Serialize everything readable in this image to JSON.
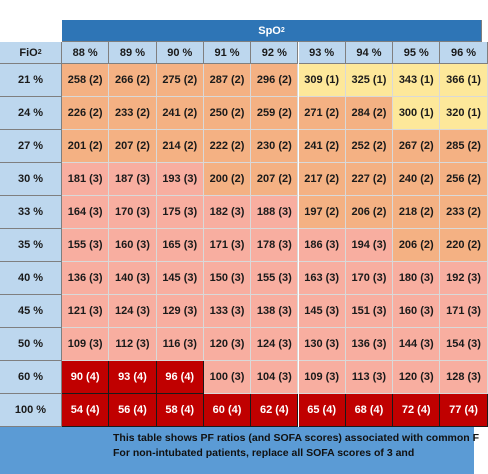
{
  "header": {
    "spo2": {
      "text": "SpO",
      "sub": "2"
    },
    "fio2": {
      "text": "FiO",
      "sub": "2"
    }
  },
  "table": {
    "columns": [
      "88 %",
      "89 %",
      "90 %",
      "91 %",
      "92 %",
      "93 %",
      "94 %",
      "95 %",
      "96 %"
    ],
    "rows": [
      {
        "fio2": "21 %",
        "cells": [
          "258 (2)",
          "266 (2)",
          "275 (2)",
          "287 (2)",
          "296 (2)",
          "309 (1)",
          "325 (1)",
          "343 (1)",
          "366 (1)"
        ]
      },
      {
        "fio2": "24 %",
        "cells": [
          "226 (2)",
          "233 (2)",
          "241 (2)",
          "250 (2)",
          "259 (2)",
          "271 (2)",
          "284 (2)",
          "300 (1)",
          "320 (1)"
        ]
      },
      {
        "fio2": "27 %",
        "cells": [
          "201 (2)",
          "207 (2)",
          "214 (2)",
          "222 (2)",
          "230 (2)",
          "241 (2)",
          "252 (2)",
          "267 (2)",
          "285 (2)"
        ]
      },
      {
        "fio2": "30 %",
        "cells": [
          "181 (3)",
          "187 (3)",
          "193 (3)",
          "200 (2)",
          "207 (2)",
          "217 (2)",
          "227 (2)",
          "240 (2)",
          "256 (2)"
        ]
      },
      {
        "fio2": "33 %",
        "cells": [
          "164 (3)",
          "170 (3)",
          "175 (3)",
          "182 (3)",
          "188 (3)",
          "197 (2)",
          "206 (2)",
          "218 (2)",
          "233 (2)"
        ]
      },
      {
        "fio2": "35 %",
        "cells": [
          "155 (3)",
          "160 (3)",
          "165 (3)",
          "171 (3)",
          "178 (3)",
          "186 (3)",
          "194 (3)",
          "206 (2)",
          "220 (2)"
        ]
      },
      {
        "fio2": "40 %",
        "cells": [
          "136 (3)",
          "140 (3)",
          "145 (3)",
          "150 (3)",
          "155 (3)",
          "163 (3)",
          "170 (3)",
          "180 (3)",
          "192 (3)"
        ]
      },
      {
        "fio2": "45 %",
        "cells": [
          "121 (3)",
          "124 (3)",
          "129 (3)",
          "133 (3)",
          "138 (3)",
          "145 (3)",
          "151 (3)",
          "160 (3)",
          "171 (3)"
        ]
      },
      {
        "fio2": "50 %",
        "cells": [
          "109 (3)",
          "112 (3)",
          "116 (3)",
          "120 (3)",
          "124 (3)",
          "130 (3)",
          "136 (3)",
          "144 (3)",
          "154 (3)"
        ]
      },
      {
        "fio2": "60 %",
        "cells": [
          "90 (4)",
          "93 (4)",
          "96 (4)",
          "100 (3)",
          "104 (3)",
          "109 (3)",
          "113 (3)",
          "120 (3)",
          "128 (3)"
        ]
      },
      {
        "fio2": "100 %",
        "cells": [
          "54 (4)",
          "56 (4)",
          "58 (4)",
          "60 (4)",
          "62 (4)",
          "65 (4)",
          "68 (4)",
          "72 (4)",
          "77 (4)"
        ]
      }
    ]
  },
  "colors": {
    "1": "#fde89a",
    "2": "#f4b183",
    "3": "#f8aea0",
    "4": "#c00000"
  },
  "footer": {
    "lines": [
      "This table shows PF ratios (and SOFA scores) associated with common F",
      "For non-intubated patients, replace all SOFA scores of 3 and"
    ]
  }
}
